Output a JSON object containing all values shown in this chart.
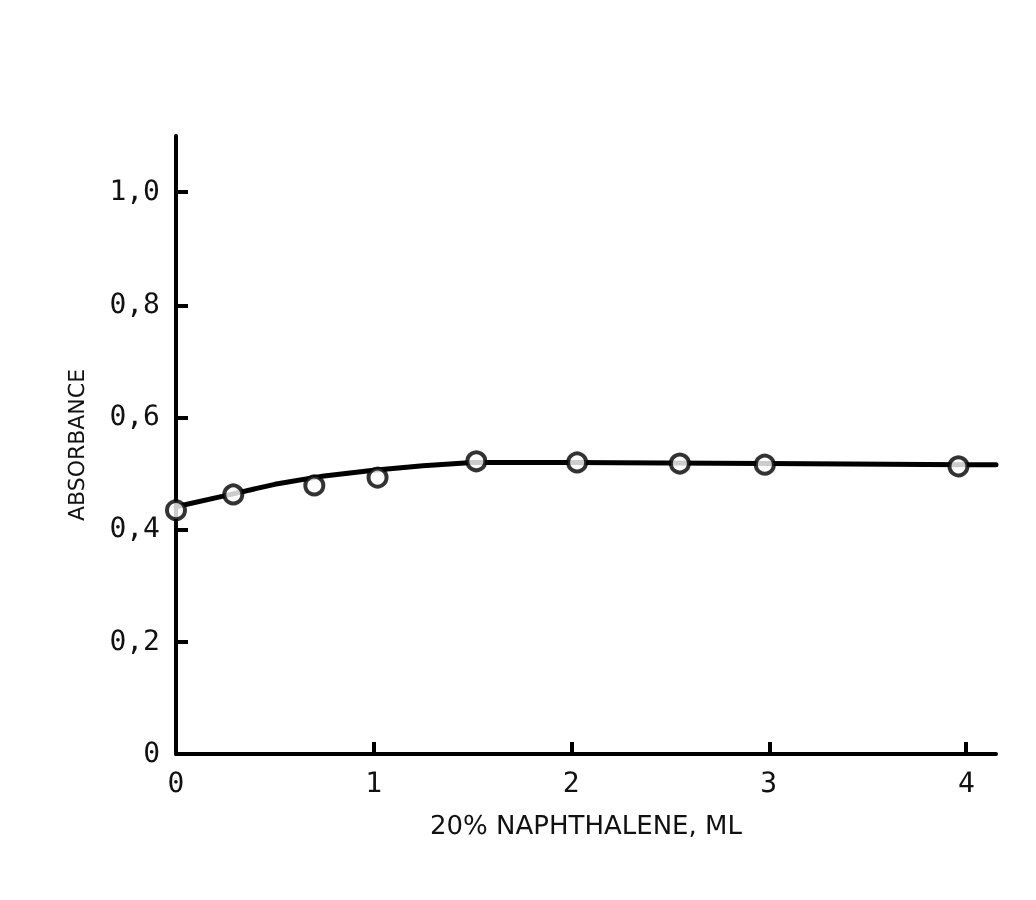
{
  "chart_data": {
    "type": "scatter",
    "xlabel": "20% NAPHTHALENE, ML",
    "ylabel": "ABSORBANCE",
    "xlim": [
      0,
      4.15
    ],
    "ylim": [
      0,
      1.1
    ],
    "xticks": [
      0,
      1,
      2,
      3,
      4
    ],
    "yticks": [
      0,
      {
        "value": 0.2,
        "label": "0,2"
      },
      {
        "value": 0.4,
        "label": "0,4"
      },
      {
        "value": 0.6,
        "label": "0,6"
      },
      {
        "value": 0.8,
        "label": "0,8"
      },
      {
        "value": 1.0,
        "label": "1,0"
      }
    ],
    "grid": false,
    "series": [
      {
        "color": "#000000",
        "marker": "circle",
        "x": [
          0,
          0.29,
          0.7,
          1.02,
          1.52,
          2.03,
          2.55,
          2.98,
          3.96
        ],
        "values": [
          0.434,
          0.462,
          0.478,
          0.492,
          0.521,
          0.519,
          0.517,
          0.515,
          0.512
        ]
      },
      {
        "type": "line",
        "color": "#000000",
        "marker": "none",
        "line_style": "solid",
        "x": [
          0,
          0.25,
          0.5,
          0.75,
          1,
          1.25,
          1.5,
          2,
          3,
          4,
          4.15
        ],
        "values": [
          0.44,
          0.46,
          0.48,
          0.495,
          0.505,
          0.513,
          0.519,
          0.519,
          0.517,
          0.515,
          0.515
        ]
      }
    ]
  }
}
